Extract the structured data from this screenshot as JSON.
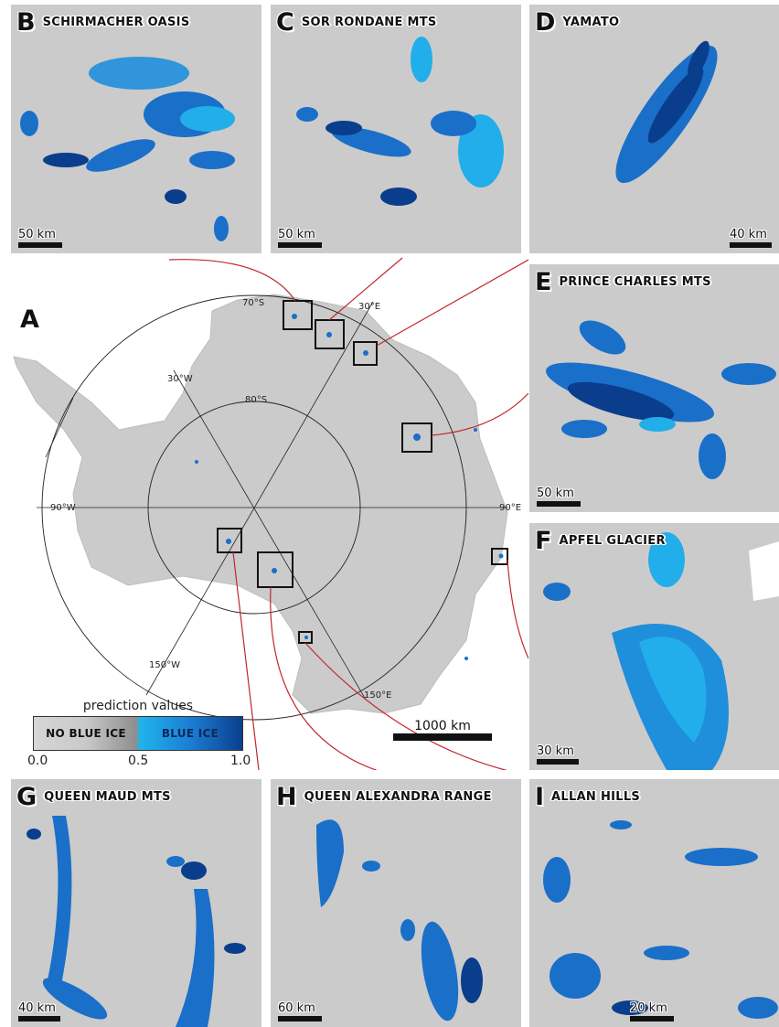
{
  "figure": {
    "map_label": "A",
    "panels": [
      {
        "id": "B",
        "title": "SCHIRMACHER OASIS",
        "scale": "50 km"
      },
      {
        "id": "C",
        "title": "SOR RONDANE MTS",
        "scale": "50 km"
      },
      {
        "id": "D",
        "title": "YAMATO",
        "scale": "40 km"
      },
      {
        "id": "E",
        "title": "PRINCE CHARLES MTS",
        "scale": "50 km"
      },
      {
        "id": "F",
        "title": "APFEL GLACIER",
        "scale": "30 km"
      },
      {
        "id": "G",
        "title": "QUEEN MAUD MTS",
        "scale": "40 km"
      },
      {
        "id": "H",
        "title": "QUEEN ALEXANDRA RANGE",
        "scale": "60 km"
      },
      {
        "id": "I",
        "title": "ALLAN HILLS",
        "scale": "20 km"
      }
    ],
    "graticule": {
      "lat_70": "70°S",
      "lat_80": "80°S",
      "lon_30e": "30°E",
      "lon_30w": "30°W",
      "lon_90w": "90°W",
      "lon_90e": "90°E",
      "lon_150w": "150°W",
      "lon_150e": "150°E"
    },
    "main_scale": "1000 km",
    "legend": {
      "title": "prediction values",
      "low_label": "NO BLUE ICE",
      "high_label": "BLUE ICE",
      "ticks": [
        "0.0",
        "0.5",
        "1.0"
      ]
    },
    "colors": {
      "ice_background": "#cbcbcb",
      "blue_light": "#22aeea",
      "blue_mid": "#1a6fc9",
      "blue_dark": "#0a3d8c",
      "leader_line": "#c0282d",
      "box_outline": "#111111"
    }
  }
}
